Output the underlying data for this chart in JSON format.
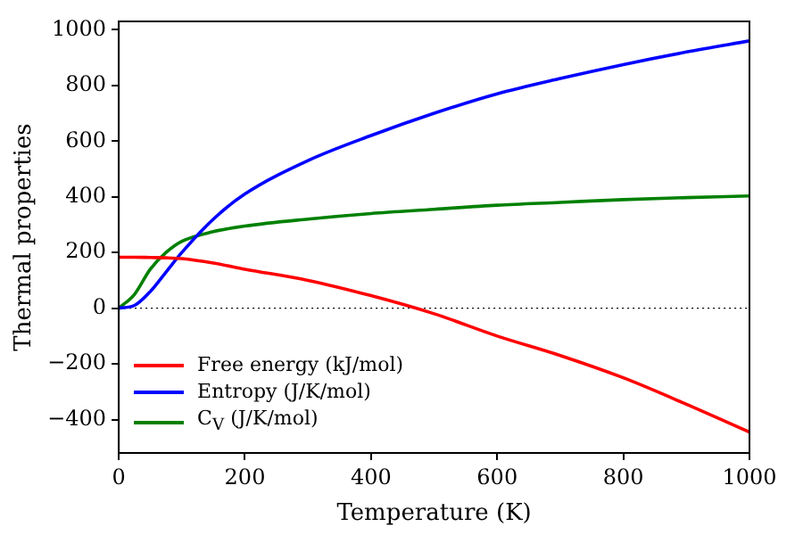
{
  "chart_data": {
    "type": "line",
    "xlabel": "Temperature (K)",
    "ylabel": "Thermal properties",
    "x": [
      0,
      25,
      50,
      75,
      100,
      150,
      200,
      300,
      400,
      500,
      600,
      700,
      800,
      900,
      1000
    ],
    "series": [
      {
        "name": "Free energy (kJ/mol)",
        "color": "#ff0000",
        "values": [
          183,
          183,
          182,
          181,
          178,
          162,
          140,
          100,
          45,
          -20,
          -100,
          -170,
          -250,
          -345,
          -445
        ]
      },
      {
        "name": "Entropy (J/K/mol)",
        "color": "#0000ff",
        "values": [
          0,
          10,
          60,
          130,
          200,
          320,
          410,
          530,
          620,
          700,
          770,
          825,
          875,
          920,
          960
        ]
      },
      {
        "name": "C$_{V}$ (J/K/mol)",
        "color": "#008000",
        "values": [
          0,
          50,
          140,
          200,
          240,
          275,
          295,
          320,
          340,
          355,
          370,
          380,
          390,
          397,
          403
        ]
      }
    ],
    "xlim": [
      0,
      1000
    ],
    "xticks": [
      0,
      200,
      400,
      600,
      800,
      1000
    ],
    "ylim": [
      -520,
      1030
    ],
    "yticks": [
      -400,
      -200,
      0,
      200,
      400,
      600,
      800,
      1000
    ],
    "ref_lines": [
      {
        "axis": "y",
        "value": 0,
        "color": "#000000",
        "line_style": "dotted"
      }
    ],
    "grid": false,
    "legend": "bottom left",
    "marker": "none",
    "line_style": "solid"
  }
}
